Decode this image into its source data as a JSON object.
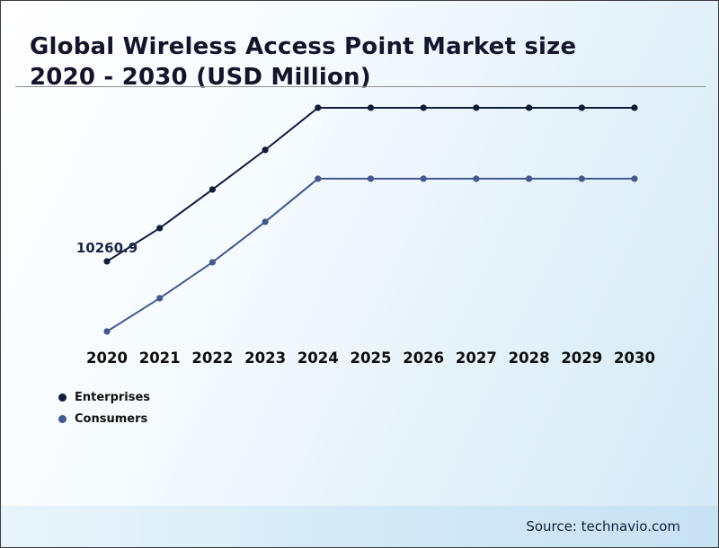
{
  "title": {
    "line1": "Global Wireless Access Point Market size",
    "line2": "2020 - 2030 (USD Million)"
  },
  "source": "Source: technavio.com",
  "legend": [
    {
      "label": "Enterprises",
      "color": "#0f1d3b"
    },
    {
      "label": "Consumers",
      "color": "#44588e"
    }
  ],
  "chart_data": {
    "type": "line",
    "title": "Global Wireless Access Point Market size 2020 - 2030 (USD Million)",
    "xlabel": "",
    "ylabel": "",
    "x": [
      2020,
      2021,
      2022,
      2023,
      2024,
      2025,
      2026,
      2027,
      2028,
      2029,
      2030
    ],
    "series": [
      {
        "name": "Enterprises",
        "color": "#0f1d3b",
        "values": [
          10260.9,
          14480,
          19380,
          24400,
          29750,
          29750,
          29750,
          29750,
          29750,
          29750,
          29750
        ]
      },
      {
        "name": "Consumers",
        "color": "#44588e",
        "values": [
          1370,
          5590,
          10150,
          15280,
          20750,
          20750,
          20750,
          20750,
          20750,
          20750,
          20750
        ]
      }
    ],
    "ylim": [
      0,
      30200
    ],
    "grid": false,
    "legend_position": "bottom-left",
    "annotations": [
      {
        "text": "10260.9",
        "series": "Enterprises",
        "x": 2020
      }
    ]
  }
}
